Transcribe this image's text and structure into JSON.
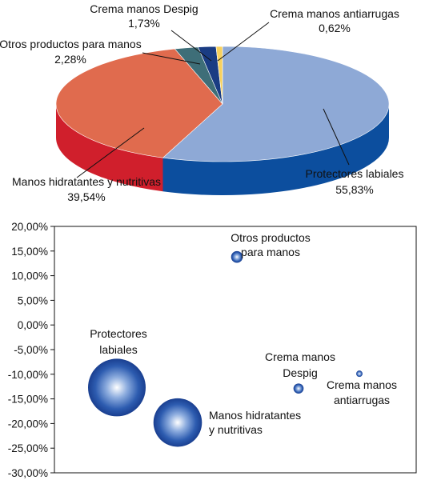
{
  "chart_data": [
    {
      "type": "pie",
      "title": "",
      "slices": [
        {
          "label": [
            "Protectores labiales"
          ],
          "value_text": "55,83%",
          "value": 55.83,
          "top_color": "#8EA9D6",
          "side_color": "#0C4E9E"
        },
        {
          "label": [
            "Manos hidratantes y nutritivas"
          ],
          "value_text": "39,54%",
          "value": 39.54,
          "top_color": "#E06B4E",
          "side_color": "#D01F2C"
        },
        {
          "label": [
            "Otros productos para manos"
          ],
          "value_text": "2,28%",
          "value": 2.28,
          "top_color": "#3E6E78",
          "side_color": "#1F4C56"
        },
        {
          "label": [
            "Crema manos Despig"
          ],
          "value_text": "1,73%",
          "value": 1.73,
          "top_color": "#1A3C83",
          "side_color": "#0E2A66"
        },
        {
          "label": [
            "Crema manos antiarrugas"
          ],
          "value_text": "0,62%",
          "value": 0.62,
          "top_color": "#F7D15E",
          "side_color": "#E2B33A"
        }
      ]
    },
    {
      "type": "scatter",
      "variant": "bubble",
      "title": "",
      "xlabel": "",
      "ylabel": "",
      "ylim": [
        -30,
        20
      ],
      "y_ticks": [
        20,
        15,
        10,
        5,
        0,
        -5,
        -10,
        -15,
        -20,
        -25,
        -30
      ],
      "y_tick_labels": [
        "20,00%",
        "15,00%",
        "10,00%",
        "5,00%",
        "0,00%",
        "-5,00%",
        "-10,00%",
        "-15,00%",
        "-20,00%",
        "-25,00%",
        "-30,00%"
      ],
      "grid": false,
      "legend": "none",
      "bubble_color": "#1D4FA6",
      "points": [
        {
          "name": [
            "Protectores",
            "labiales"
          ],
          "y": -12.7,
          "share": 55.83
        },
        {
          "name": [
            "Manos hidratantes",
            "y nutritivas"
          ],
          "y": -19.8,
          "share": 39.54
        },
        {
          "name": [
            "Otros productos",
            "para manos"
          ],
          "y": 13.8,
          "share": 2.28
        },
        {
          "name": [
            "Crema manos",
            "Despig"
          ],
          "y": -12.9,
          "share": 1.73
        },
        {
          "name": [
            "Crema manos",
            "antiarrugas"
          ],
          "y": -9.9,
          "share": 0.62
        }
      ]
    }
  ]
}
